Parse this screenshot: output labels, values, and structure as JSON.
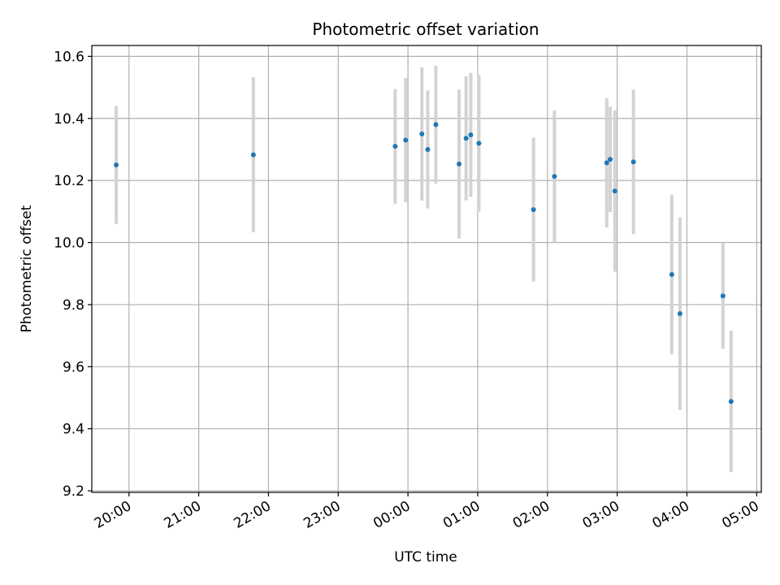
{
  "chart_data": {
    "type": "scatter",
    "title": "Photometric offset variation",
    "xlabel": "UTC time",
    "ylabel": "Photometric offset",
    "grid": true,
    "x_ticks": [
      "20:00",
      "21:00",
      "22:00",
      "23:00",
      "00:00",
      "01:00",
      "02:00",
      "03:00",
      "04:00",
      "05:00"
    ],
    "y_ticks": [
      "9.2",
      "9.4",
      "9.6",
      "9.8",
      "10.0",
      "10.2",
      "10.4",
      "10.6"
    ],
    "xlim": [
      "19:28",
      "05:04"
    ],
    "ylim": [
      9.195,
      10.635
    ],
    "colors": {
      "point": "#1f77b4",
      "errorbar": "#d3d3d3",
      "grid": "#b0b0b0"
    },
    "series": [
      {
        "points": [
          {
            "x": "19:49",
            "y": 10.25,
            "err": 0.19
          },
          {
            "x": "21:47",
            "y": 10.283,
            "err": 0.25
          },
          {
            "x": "23:49",
            "y": 10.31,
            "err": 0.185
          },
          {
            "x": "23:58",
            "y": 10.33,
            "err": 0.2
          },
          {
            "x": "00:12",
            "y": 10.35,
            "err": 0.215
          },
          {
            "x": "00:17",
            "y": 10.3,
            "err": 0.19
          },
          {
            "x": "00:24",
            "y": 10.38,
            "err": 0.19
          },
          {
            "x": "00:44",
            "y": 10.253,
            "err": 0.24
          },
          {
            "x": "00:50",
            "y": 10.336,
            "err": 0.2
          },
          {
            "x": "00:54",
            "y": 10.347,
            "err": 0.2
          },
          {
            "x": "01:01",
            "y": 10.32,
            "err": 0.22
          },
          {
            "x": "01:48",
            "y": 10.106,
            "err": 0.232
          },
          {
            "x": "02:06",
            "y": 10.213,
            "err": 0.213
          },
          {
            "x": "02:51",
            "y": 10.257,
            "err": 0.208
          },
          {
            "x": "02:54",
            "y": 10.268,
            "err": 0.17
          },
          {
            "x": "02:58",
            "y": 10.166,
            "err": 0.26
          },
          {
            "x": "03:14",
            "y": 10.26,
            "err": 0.233
          },
          {
            "x": "03:47",
            "y": 9.897,
            "err": 0.257
          },
          {
            "x": "03:54",
            "y": 9.771,
            "err": 0.31
          },
          {
            "x": "04:31",
            "y": 9.828,
            "err": 0.17
          },
          {
            "x": "04:38",
            "y": 9.488,
            "err": 0.228
          }
        ]
      }
    ]
  }
}
